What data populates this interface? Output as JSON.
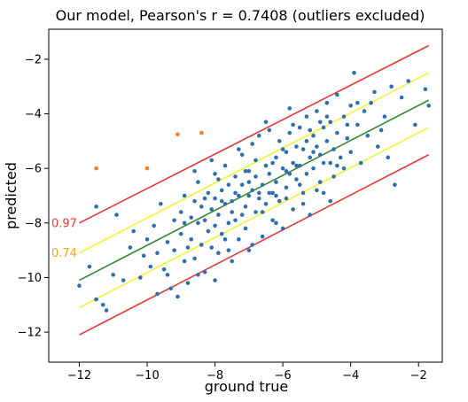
{
  "chart_data": {
    "type": "scatter",
    "title": "Our model, Pearson's r = 0.7408 (outliers excluded)",
    "xlabel": "ground true",
    "ylabel": "predicted",
    "xlim": [
      -12.9,
      -1.3
    ],
    "ylim": [
      -13.1,
      -0.9
    ],
    "xticks": [
      -12,
      -10,
      -8,
      -6,
      -4,
      -2
    ],
    "yticks": [
      -2,
      -4,
      -6,
      -8,
      -10,
      -12
    ],
    "grid": false,
    "lines": [
      {
        "name": "upper-red",
        "color": "#e03a3a",
        "x": [
          -12,
          -1.7
        ],
        "y": [
          -8.0,
          -1.5
        ]
      },
      {
        "name": "upper-yellow",
        "color": "#f2f23c",
        "x": [
          -12,
          -1.7
        ],
        "y": [
          -9.1,
          -2.5
        ]
      },
      {
        "name": "fit-green",
        "color": "#2f8a2f",
        "x": [
          -12,
          -1.7
        ],
        "y": [
          -10.1,
          -3.5
        ]
      },
      {
        "name": "lower-yellow",
        "color": "#f2f23c",
        "x": [
          -12,
          -1.7
        ],
        "y": [
          -11.1,
          -4.5
        ]
      },
      {
        "name": "lower-red",
        "color": "#e03a3a",
        "x": [
          -12,
          -1.7
        ],
        "y": [
          -12.1,
          -5.5
        ]
      }
    ],
    "annotations": [
      {
        "text": "0.97",
        "x": -12.9,
        "y": -8.0,
        "color": "#e03a3a"
      },
      {
        "text": "0.74",
        "x": -12.9,
        "y": -9.1,
        "color": "#e8a52a"
      }
    ],
    "outliers": {
      "color": "#f07f2a",
      "points": [
        [
          -11.5,
          -6.0
        ],
        [
          -10.0,
          -6.0
        ],
        [
          -9.1,
          -4.75
        ],
        [
          -8.4,
          -4.7
        ]
      ]
    },
    "points_color": "#2f6fad",
    "points": [
      [
        -12.0,
        -10.3
      ],
      [
        -11.7,
        -9.6
      ],
      [
        -11.5,
        -7.4
      ],
      [
        -11.5,
        -10.8
      ],
      [
        -11.3,
        -11.0
      ],
      [
        -11.2,
        -11.2
      ],
      [
        -11.0,
        -9.9
      ],
      [
        -10.9,
        -7.7
      ],
      [
        -10.7,
        -10.1
      ],
      [
        -10.5,
        -8.9
      ],
      [
        -10.4,
        -8.3
      ],
      [
        -10.2,
        -10.0
      ],
      [
        -10.1,
        -9.2
      ],
      [
        -10.0,
        -8.6
      ],
      [
        -9.9,
        -9.6
      ],
      [
        -9.8,
        -8.1
      ],
      [
        -9.7,
        -9.1
      ],
      [
        -9.6,
        -7.3
      ],
      [
        -9.5,
        -9.7
      ],
      [
        -9.4,
        -8.7
      ],
      [
        -9.3,
        -10.4
      ],
      [
        -9.2,
        -7.9
      ],
      [
        -9.2,
        -9.0
      ],
      [
        -9.1,
        -10.7
      ],
      [
        -9.0,
        -8.4
      ],
      [
        -9.0,
        -7.6
      ],
      [
        -8.9,
        -9.4
      ],
      [
        -8.9,
        -7.0
      ],
      [
        -8.8,
        -8.9
      ],
      [
        -8.8,
        -10.2
      ],
      [
        -8.7,
        -7.8
      ],
      [
        -8.7,
        -8.6
      ],
      [
        -8.6,
        -7.2
      ],
      [
        -8.6,
        -9.3
      ],
      [
        -8.5,
        -8.0
      ],
      [
        -8.5,
        -6.5
      ],
      [
        -8.4,
        -8.8
      ],
      [
        -8.4,
        -7.4
      ],
      [
        -8.3,
        -9.8
      ],
      [
        -8.3,
        -7.9
      ],
      [
        -8.2,
        -8.3
      ],
      [
        -8.2,
        -6.9
      ],
      [
        -8.1,
        -7.5
      ],
      [
        -8.1,
        -8.9
      ],
      [
        -8.0,
        -7.1
      ],
      [
        -8.0,
        -8.1
      ],
      [
        -8.0,
        -6.2
      ],
      [
        -7.9,
        -7.7
      ],
      [
        -7.9,
        -9.1
      ],
      [
        -7.8,
        -6.8
      ],
      [
        -7.8,
        -8.4
      ],
      [
        -7.7,
        -7.3
      ],
      [
        -7.7,
        -5.9
      ],
      [
        -7.6,
        -8.0
      ],
      [
        -7.6,
        -6.6
      ],
      [
        -7.5,
        -7.6
      ],
      [
        -7.5,
        -9.4
      ],
      [
        -7.4,
        -6.3
      ],
      [
        -7.4,
        -7.9
      ],
      [
        -7.3,
        -7.0
      ],
      [
        -7.3,
        -8.6
      ],
      [
        -7.2,
        -6.6
      ],
      [
        -7.2,
        -5.5
      ],
      [
        -7.1,
        -7.4
      ],
      [
        -7.1,
        -8.2
      ],
      [
        -7.0,
        -6.1
      ],
      [
        -7.0,
        -7.0
      ],
      [
        -7.0,
        -9.0
      ],
      [
        -6.9,
        -6.8
      ],
      [
        -6.9,
        -5.1
      ],
      [
        -6.8,
        -7.6
      ],
      [
        -6.8,
        -6.3
      ],
      [
        -6.7,
        -7.1
      ],
      [
        -6.7,
        -4.8
      ],
      [
        -6.6,
        -6.6
      ],
      [
        -6.6,
        -8.5
      ],
      [
        -6.5,
        -5.9
      ],
      [
        -6.5,
        -7.3
      ],
      [
        -6.4,
        -6.2
      ],
      [
        -6.4,
        -4.6
      ],
      [
        -6.3,
        -6.9
      ],
      [
        -6.3,
        -7.9
      ],
      [
        -6.2,
        -5.6
      ],
      [
        -6.2,
        -6.5
      ],
      [
        -6.1,
        -7.2
      ],
      [
        -6.1,
        -5.0
      ],
      [
        -6.0,
        -6.0
      ],
      [
        -6.0,
        -8.2
      ],
      [
        -5.9,
        -5.4
      ],
      [
        -5.9,
        -6.7
      ],
      [
        -5.8,
        -6.2
      ],
      [
        -5.8,
        -4.7
      ],
      [
        -5.7,
        -5.8
      ],
      [
        -5.7,
        -7.5
      ],
      [
        -5.6,
        -5.2
      ],
      [
        -5.6,
        -6.4
      ],
      [
        -5.5,
        -4.5
      ],
      [
        -5.5,
        -5.9
      ],
      [
        -5.4,
        -6.9
      ],
      [
        -5.4,
        -5.3
      ],
      [
        -5.3,
        -4.1
      ],
      [
        -5.3,
        -6.2
      ],
      [
        -5.2,
        -5.6
      ],
      [
        -5.2,
        -7.7
      ],
      [
        -5.1,
        -4.8
      ],
      [
        -5.1,
        -6.0
      ],
      [
        -5.0,
        -5.2
      ],
      [
        -5.0,
        -3.9
      ],
      [
        -4.9,
        -6.5
      ],
      [
        -4.9,
        -5.5
      ],
      [
        -4.8,
        -4.5
      ],
      [
        -4.8,
        -6.9
      ],
      [
        -4.7,
        -5.0
      ],
      [
        -4.7,
        -3.6
      ],
      [
        -4.6,
        -5.8
      ],
      [
        -4.6,
        -4.3
      ],
      [
        -4.5,
        -5.3
      ],
      [
        -4.5,
        -6.3
      ],
      [
        -4.4,
        -4.7
      ],
      [
        -4.4,
        -3.3
      ],
      [
        -4.3,
        -5.6
      ],
      [
        -4.2,
        -4.1
      ],
      [
        -4.2,
        -6.0
      ],
      [
        -4.1,
        -4.9
      ],
      [
        -4.0,
        -3.7
      ],
      [
        -4.0,
        -5.4
      ],
      [
        -3.9,
        -2.5
      ],
      [
        -3.8,
        -4.4
      ],
      [
        -3.7,
        -5.8
      ],
      [
        -3.6,
        -3.9
      ],
      [
        -3.5,
        -4.8
      ],
      [
        -3.3,
        -3.2
      ],
      [
        -3.2,
        -5.2
      ],
      [
        -3.0,
        -4.1
      ],
      [
        -2.9,
        -5.6
      ],
      [
        -2.8,
        -3.0
      ],
      [
        -2.7,
        -6.6
      ],
      [
        -2.5,
        -3.4
      ],
      [
        -2.3,
        -2.8
      ],
      [
        -2.1,
        -4.4
      ],
      [
        -1.8,
        -3.1
      ],
      [
        -1.7,
        -3.7
      ],
      [
        -8.6,
        -6.1
      ],
      [
        -8.1,
        -5.7
      ],
      [
        -7.6,
        -9.0
      ],
      [
        -7.3,
        -5.3
      ],
      [
        -6.9,
        -8.8
      ],
      [
        -6.5,
        -4.3
      ],
      [
        -6.2,
        -8.0
      ],
      [
        -5.8,
        -3.8
      ],
      [
        -5.4,
        -7.3
      ],
      [
        -5.0,
        -6.8
      ],
      [
        -4.6,
        -7.2
      ],
      [
        -7.8,
        -7.2
      ],
      [
        -7.4,
        -6.9
      ],
      [
        -7.0,
        -6.5
      ],
      [
        -6.6,
        -7.6
      ],
      [
        -6.2,
        -7.0
      ],
      [
        -5.9,
        -6.1
      ],
      [
        -5.6,
        -5.9
      ],
      [
        -5.2,
        -4.6
      ],
      [
        -4.8,
        -5.8
      ],
      [
        -8.3,
        -7.1
      ],
      [
        -7.9,
        -6.4
      ],
      [
        -7.5,
        -7.2
      ],
      [
        -7.1,
        -6.1
      ],
      [
        -6.7,
        -6.9
      ],
      [
        -6.3,
        -5.8
      ],
      [
        -5.9,
        -7.1
      ],
      [
        -5.5,
        -6.6
      ],
      [
        -5.1,
        -5.4
      ],
      [
        -4.7,
        -4.1
      ],
      [
        -9.4,
        -9.9
      ],
      [
        -9.7,
        -10.6
      ],
      [
        -8.9,
        -8.0
      ],
      [
        -8.5,
        -9.9
      ],
      [
        -8.0,
        -10.1
      ],
      [
        -7.7,
        -8.6
      ],
      [
        -7.2,
        -7.7
      ],
      [
        -6.8,
        -5.7
      ],
      [
        -6.4,
        -6.9
      ],
      [
        -6.0,
        -5.3
      ],
      [
        -5.7,
        -4.4
      ],
      [
        -5.3,
        -5.0
      ],
      [
        -4.9,
        -4.3
      ],
      [
        -4.4,
        -5.9
      ],
      [
        -4.1,
        -4.4
      ],
      [
        -3.8,
        -3.6
      ],
      [
        -3.4,
        -3.6
      ],
      [
        -3.1,
        -4.6
      ]
    ]
  }
}
